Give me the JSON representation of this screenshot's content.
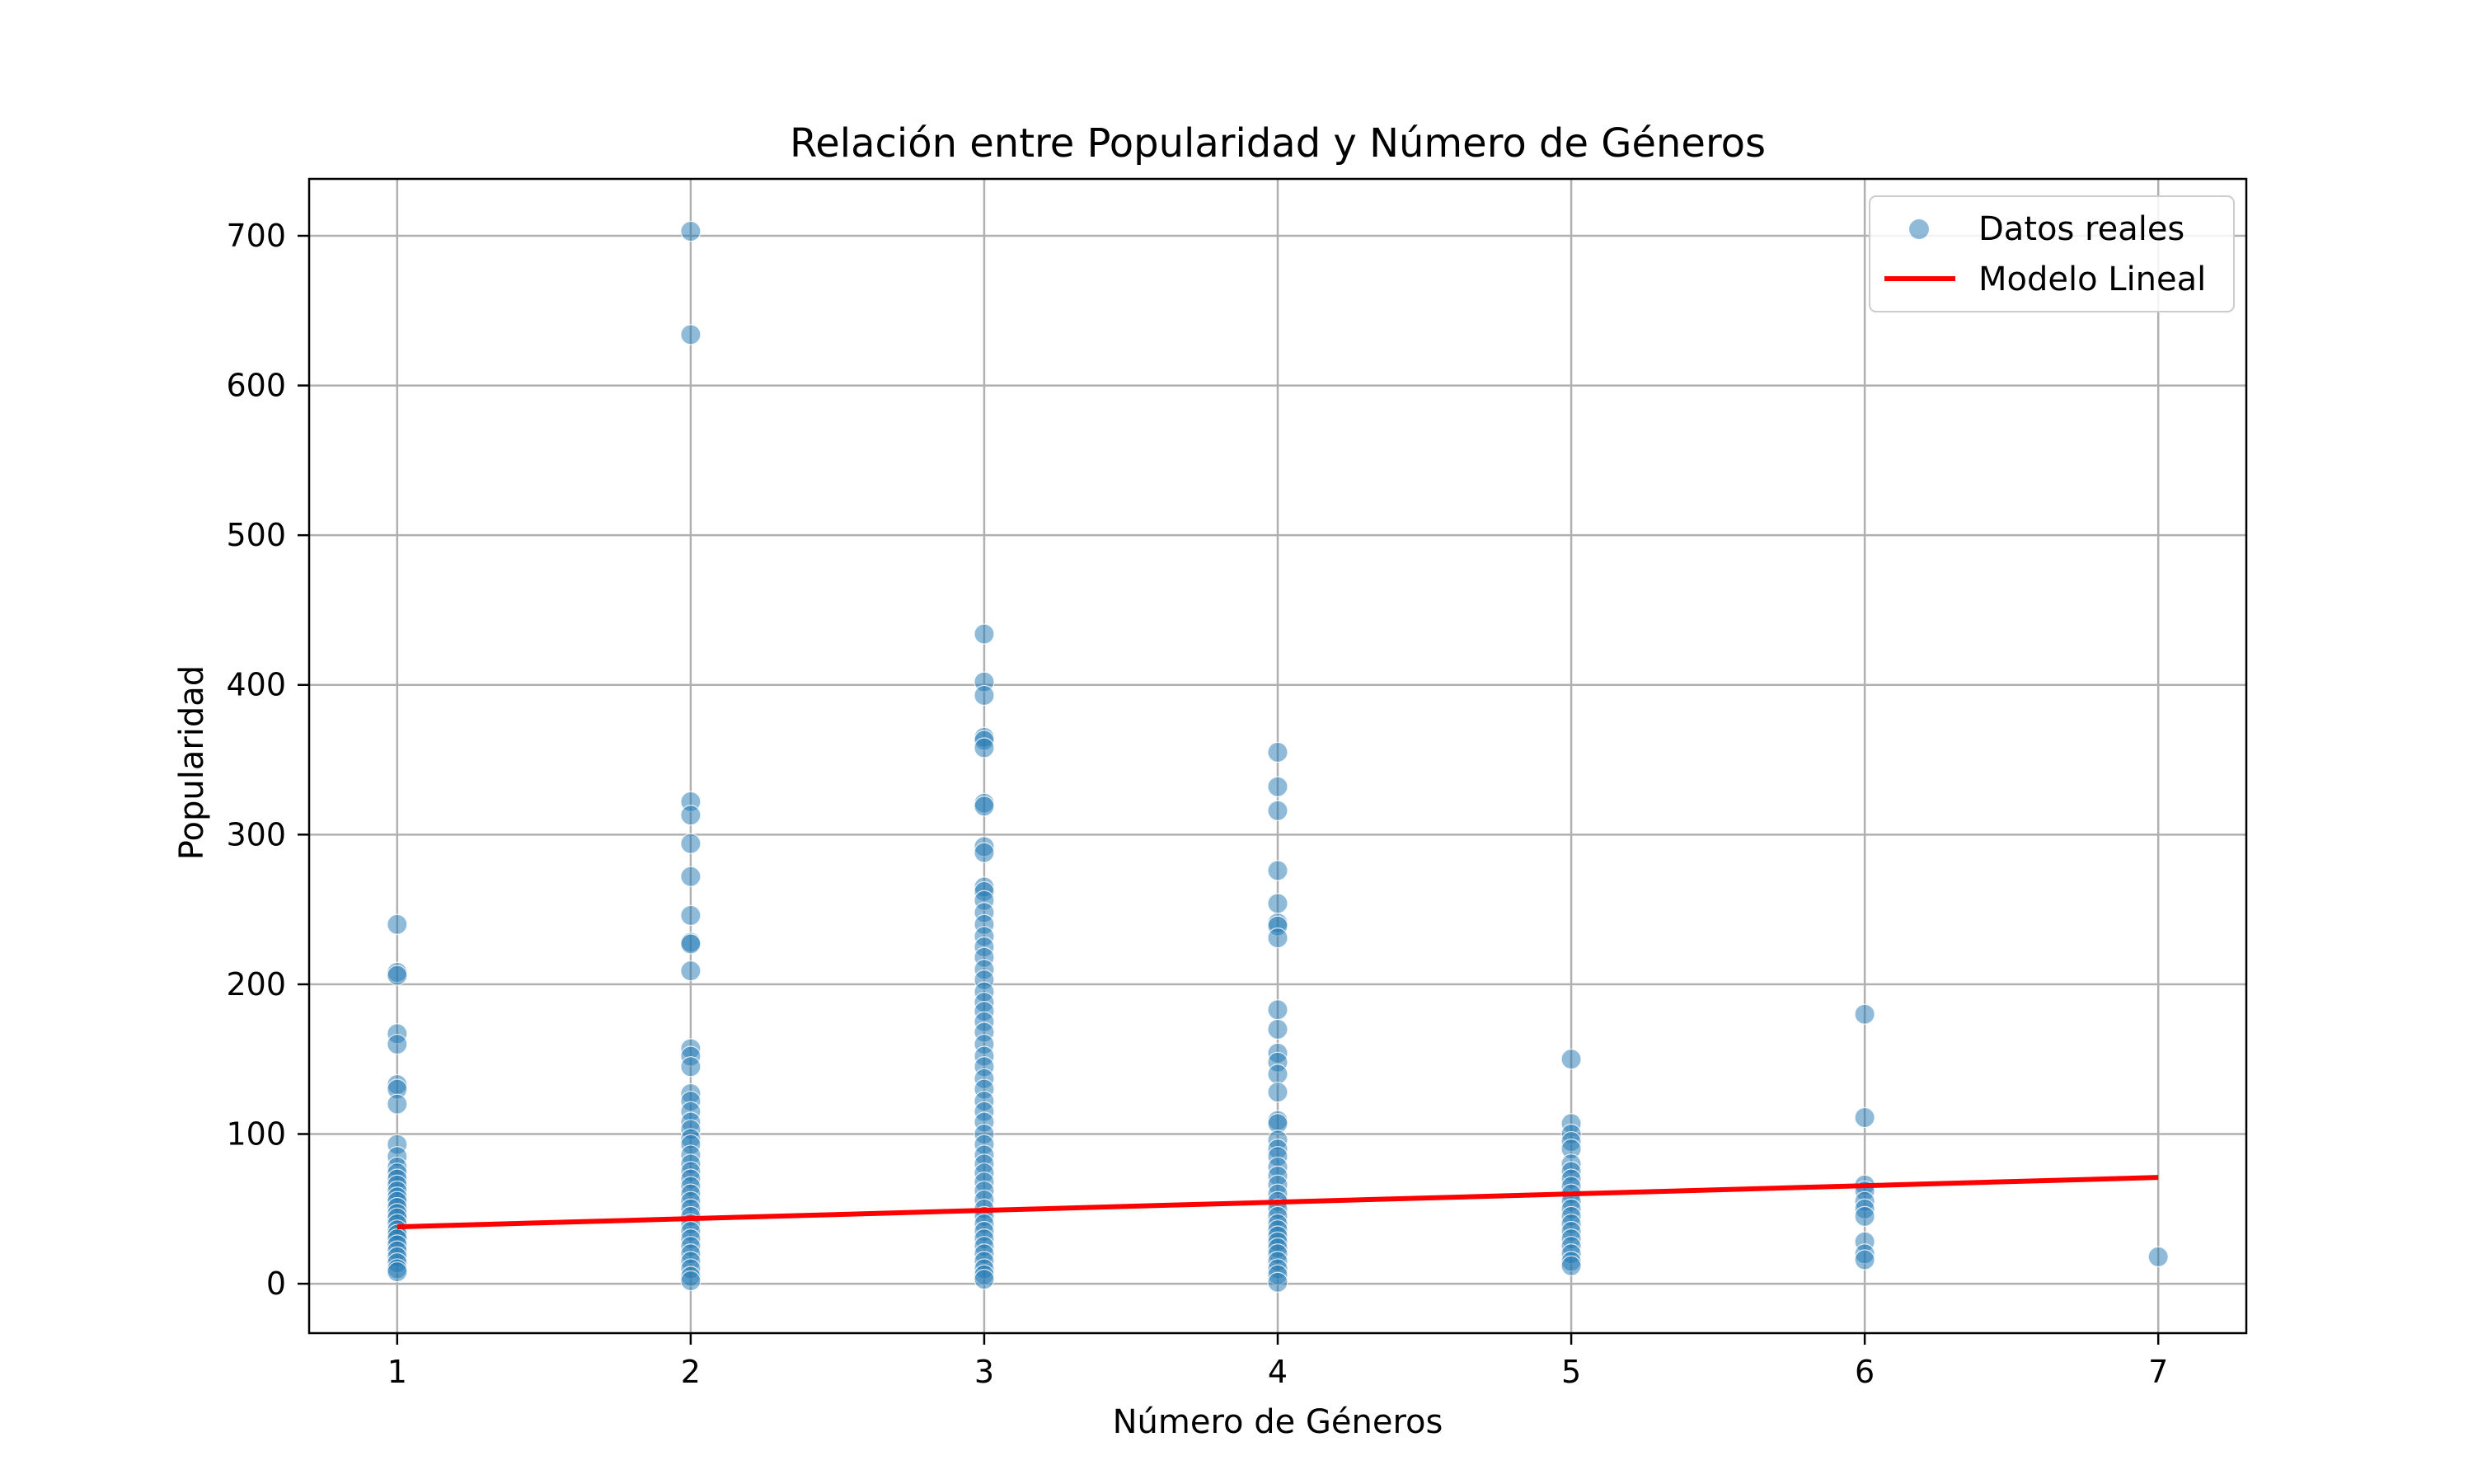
{
  "chart_data": {
    "type": "scatter",
    "title": "Relación entre Popularidad y Número de Géneros",
    "xlabel": "Número de Géneros",
    "ylabel": "Popularidad",
    "xlim": [
      0.7,
      7.3
    ],
    "ylim": [
      -33,
      738
    ],
    "xticks": [
      1,
      2,
      3,
      4,
      5,
      6,
      7
    ],
    "yticks": [
      0,
      100,
      200,
      300,
      400,
      500,
      600,
      700
    ],
    "grid": true,
    "legend_position": "top-right",
    "colors": {
      "scatter": "#1f77b4",
      "line": "#ff0000"
    },
    "series": [
      {
        "name": "Datos reales",
        "kind": "scatter",
        "points": [
          [
            1,
            240
          ],
          [
            1,
            208
          ],
          [
            1,
            206
          ],
          [
            1,
            167
          ],
          [
            1,
            160
          ],
          [
            1,
            133
          ],
          [
            1,
            130
          ],
          [
            1,
            120
          ],
          [
            1,
            93
          ],
          [
            1,
            85
          ],
          [
            1,
            78
          ],
          [
            1,
            74
          ],
          [
            1,
            70
          ],
          [
            1,
            66
          ],
          [
            1,
            62
          ],
          [
            1,
            58
          ],
          [
            1,
            55
          ],
          [
            1,
            51
          ],
          [
            1,
            47
          ],
          [
            1,
            44
          ],
          [
            1,
            40
          ],
          [
            1,
            36
          ],
          [
            1,
            33
          ],
          [
            1,
            30
          ],
          [
            1,
            26
          ],
          [
            1,
            22
          ],
          [
            1,
            18
          ],
          [
            1,
            14
          ],
          [
            1,
            10
          ],
          [
            1,
            8
          ],
          [
            2,
            703
          ],
          [
            2,
            634
          ],
          [
            2,
            322
          ],
          [
            2,
            313
          ],
          [
            2,
            294
          ],
          [
            2,
            272
          ],
          [
            2,
            246
          ],
          [
            2,
            228
          ],
          [
            2,
            227
          ],
          [
            2,
            209
          ],
          [
            2,
            157
          ],
          [
            2,
            152
          ],
          [
            2,
            145
          ],
          [
            2,
            127
          ],
          [
            2,
            122
          ],
          [
            2,
            115
          ],
          [
            2,
            108
          ],
          [
            2,
            103
          ],
          [
            2,
            97
          ],
          [
            2,
            93
          ],
          [
            2,
            86
          ],
          [
            2,
            80
          ],
          [
            2,
            75
          ],
          [
            2,
            70
          ],
          [
            2,
            65
          ],
          [
            2,
            60
          ],
          [
            2,
            55
          ],
          [
            2,
            50
          ],
          [
            2,
            45
          ],
          [
            2,
            40
          ],
          [
            2,
            35
          ],
          [
            2,
            30
          ],
          [
            2,
            25
          ],
          [
            2,
            20
          ],
          [
            2,
            15
          ],
          [
            2,
            10
          ],
          [
            2,
            5
          ],
          [
            2,
            2
          ],
          [
            3,
            434
          ],
          [
            3,
            402
          ],
          [
            3,
            393
          ],
          [
            3,
            365
          ],
          [
            3,
            363
          ],
          [
            3,
            358
          ],
          [
            3,
            321
          ],
          [
            3,
            319
          ],
          [
            3,
            292
          ],
          [
            3,
            288
          ],
          [
            3,
            265
          ],
          [
            3,
            262
          ],
          [
            3,
            256
          ],
          [
            3,
            248
          ],
          [
            3,
            240
          ],
          [
            3,
            232
          ],
          [
            3,
            225
          ],
          [
            3,
            218
          ],
          [
            3,
            210
          ],
          [
            3,
            203
          ],
          [
            3,
            195
          ],
          [
            3,
            188
          ],
          [
            3,
            182
          ],
          [
            3,
            175
          ],
          [
            3,
            168
          ],
          [
            3,
            160
          ],
          [
            3,
            152
          ],
          [
            3,
            145
          ],
          [
            3,
            137
          ],
          [
            3,
            130
          ],
          [
            3,
            122
          ],
          [
            3,
            115
          ],
          [
            3,
            108
          ],
          [
            3,
            100
          ],
          [
            3,
            93
          ],
          [
            3,
            86
          ],
          [
            3,
            80
          ],
          [
            3,
            74
          ],
          [
            3,
            68
          ],
          [
            3,
            62
          ],
          [
            3,
            56
          ],
          [
            3,
            50
          ],
          [
            3,
            45
          ],
          [
            3,
            40
          ],
          [
            3,
            35
          ],
          [
            3,
            30
          ],
          [
            3,
            25
          ],
          [
            3,
            20
          ],
          [
            3,
            15
          ],
          [
            3,
            10
          ],
          [
            3,
            6
          ],
          [
            3,
            3
          ],
          [
            4,
            355
          ],
          [
            4,
            332
          ],
          [
            4,
            316
          ],
          [
            4,
            276
          ],
          [
            4,
            254
          ],
          [
            4,
            241
          ],
          [
            4,
            239
          ],
          [
            4,
            231
          ],
          [
            4,
            183
          ],
          [
            4,
            170
          ],
          [
            4,
            154
          ],
          [
            4,
            148
          ],
          [
            4,
            140
          ],
          [
            4,
            128
          ],
          [
            4,
            109
          ],
          [
            4,
            107
          ],
          [
            4,
            96
          ],
          [
            4,
            90
          ],
          [
            4,
            85
          ],
          [
            4,
            78
          ],
          [
            4,
            72
          ],
          [
            4,
            66
          ],
          [
            4,
            60
          ],
          [
            4,
            55
          ],
          [
            4,
            50
          ],
          [
            4,
            45
          ],
          [
            4,
            40
          ],
          [
            4,
            36
          ],
          [
            4,
            32
          ],
          [
            4,
            28
          ],
          [
            4,
            24
          ],
          [
            4,
            20
          ],
          [
            4,
            15
          ],
          [
            4,
            10
          ],
          [
            4,
            6
          ],
          [
            4,
            1
          ],
          [
            5,
            150
          ],
          [
            5,
            107
          ],
          [
            5,
            100
          ],
          [
            5,
            95
          ],
          [
            5,
            90
          ],
          [
            5,
            80
          ],
          [
            5,
            75
          ],
          [
            5,
            70
          ],
          [
            5,
            65
          ],
          [
            5,
            60
          ],
          [
            5,
            55
          ],
          [
            5,
            50
          ],
          [
            5,
            45
          ],
          [
            5,
            40
          ],
          [
            5,
            35
          ],
          [
            5,
            30
          ],
          [
            5,
            25
          ],
          [
            5,
            20
          ],
          [
            5,
            15
          ],
          [
            5,
            12
          ],
          [
            6,
            180
          ],
          [
            6,
            111
          ],
          [
            6,
            66
          ],
          [
            6,
            62
          ],
          [
            6,
            55
          ],
          [
            6,
            50
          ],
          [
            6,
            45
          ],
          [
            6,
            28
          ],
          [
            6,
            20
          ],
          [
            6,
            16
          ],
          [
            7,
            18
          ]
        ]
      },
      {
        "name": "Modelo Lineal",
        "kind": "line",
        "x": [
          1,
          7
        ],
        "y": [
          38,
          71
        ]
      }
    ]
  }
}
